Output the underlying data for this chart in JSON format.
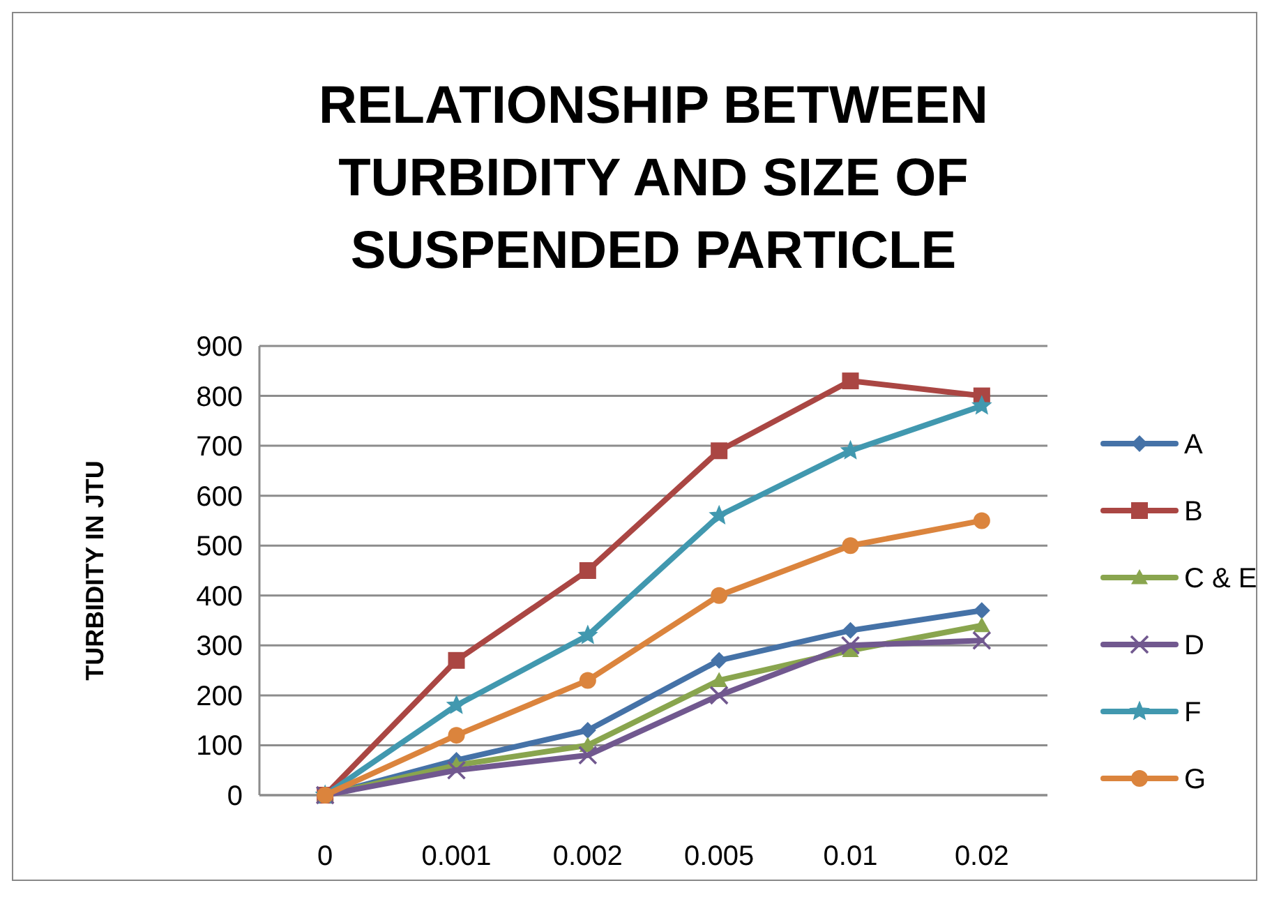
{
  "chart_data": {
    "type": "line",
    "title": "RELATIONSHIP BETWEEN TURBIDITY AND SIZE OF SUSPENDED PARTICLE",
    "ylabel": "TURBIDITY IN JTU",
    "categories": [
      "0",
      "0.001",
      "0.002",
      "0.005",
      "0.01",
      "0.02"
    ],
    "ylim": [
      0,
      900
    ],
    "yticks": [
      0,
      100,
      200,
      300,
      400,
      500,
      600,
      700,
      800,
      900
    ],
    "grid": "y",
    "legend": "right",
    "series": [
      {
        "name": "A",
        "color": "#4572a7",
        "marker": "diamond",
        "values": [
          0,
          70,
          130,
          270,
          330,
          370
        ]
      },
      {
        "name": "B",
        "color": "#aa4643",
        "marker": "square",
        "values": [
          0,
          270,
          450,
          690,
          830,
          800
        ]
      },
      {
        "name": "C & E",
        "color": "#89a54e",
        "marker": "triangle",
        "values": [
          0,
          60,
          100,
          230,
          290,
          340
        ]
      },
      {
        "name": "D",
        "color": "#71588f",
        "marker": "cross",
        "values": [
          0,
          50,
          80,
          200,
          300,
          310
        ]
      },
      {
        "name": "F",
        "color": "#4198af",
        "marker": "star",
        "values": [
          0,
          180,
          320,
          560,
          690,
          780
        ]
      },
      {
        "name": "G",
        "color": "#db843d",
        "marker": "circle",
        "values": [
          0,
          120,
          230,
          400,
          500,
          550
        ]
      }
    ]
  }
}
